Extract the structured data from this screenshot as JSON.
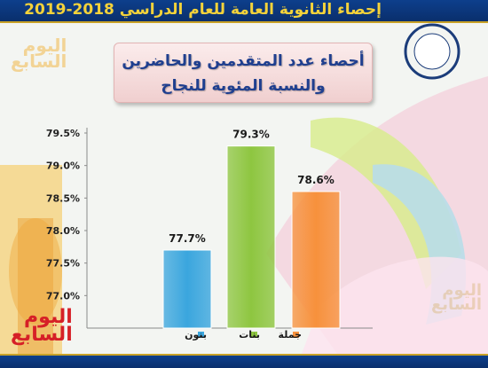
{
  "header": {
    "title": "إحصاء الثانوية العامة للعام الدراسي 2018-2019"
  },
  "chart_box": {
    "line1": "أحصاء عدد المتقدمين والحاضرين",
    "line2": "والنسبة المئوية  للنجاح"
  },
  "watermark": {
    "text_top": "اليوم",
    "text_bottom": "السابع"
  },
  "colors": {
    "header": "#0d3f8c",
    "accent": "#c9a227",
    "title_text": "#1f3f8f"
  },
  "chart_data": {
    "type": "bar",
    "categories": [
      "بنون",
      "بنات",
      "جملة"
    ],
    "values": [
      77.7,
      79.3,
      78.6
    ],
    "data_labels": [
      "77.7%",
      "79.3%",
      "78.6%"
    ],
    "colors": [
      "#3aa6de",
      "#8ec640",
      "#f7913c"
    ],
    "yticks": [
      "77.0%",
      "77.5%",
      "78.0%",
      "78.5%",
      "79.0%",
      "79.5%"
    ],
    "ylim": [
      76.5,
      79.5
    ],
    "legend": "bottom"
  }
}
